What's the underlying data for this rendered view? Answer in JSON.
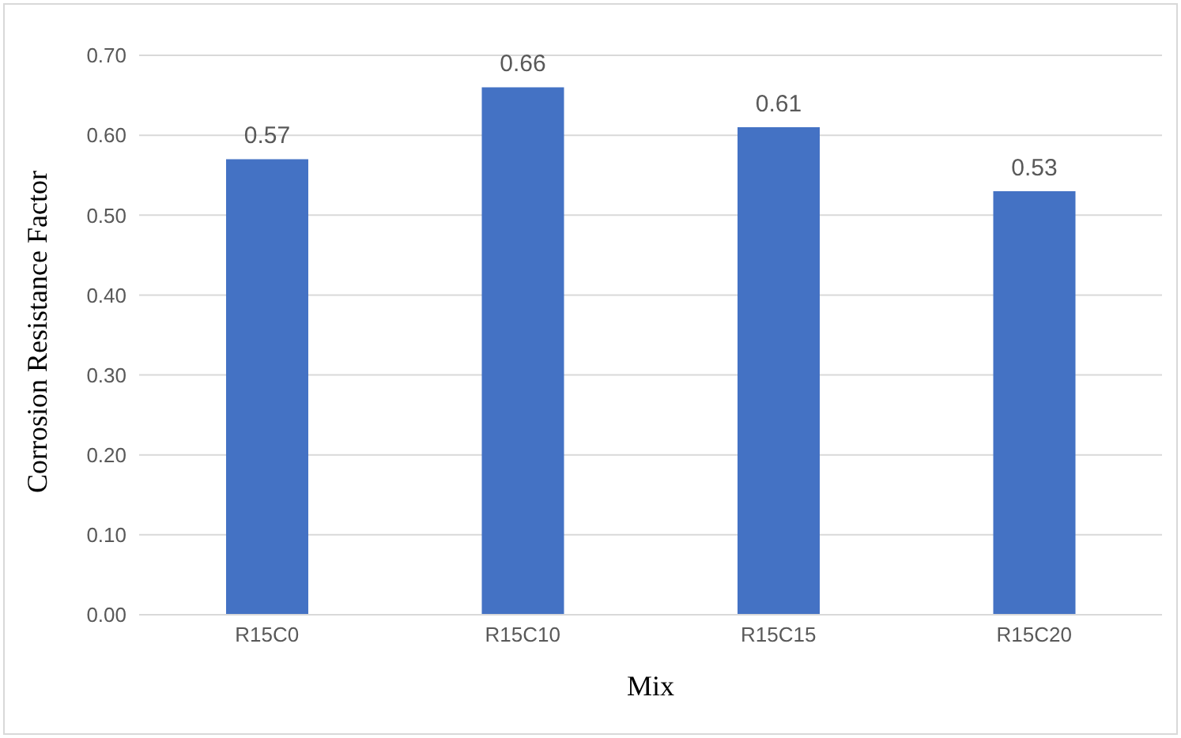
{
  "chart_data": {
    "type": "bar",
    "xlabel": "Mix",
    "ylabel": "Corrosion Resistance Factor",
    "categories": [
      "R15C0",
      "R15C10",
      "R15C15",
      "R15C20"
    ],
    "values": [
      0.57,
      0.66,
      0.61,
      0.53
    ],
    "color": "#4472c4",
    "ylim": [
      0,
      0.7
    ],
    "yticks": [
      {
        "value": 0,
        "label": "0.00"
      },
      {
        "value": 0.1,
        "label": "0.10"
      },
      {
        "value": 0.2,
        "label": "0.20"
      },
      {
        "value": 0.3,
        "label": "0.30"
      },
      {
        "value": 0.4,
        "label": "0.40"
      },
      {
        "value": 0.5,
        "label": "0.50"
      },
      {
        "value": 0.6,
        "label": "0.60"
      },
      {
        "value": 0.7,
        "label": "0.70"
      }
    ],
    "grid": "y",
    "data_labels": true,
    "legend": false
  }
}
